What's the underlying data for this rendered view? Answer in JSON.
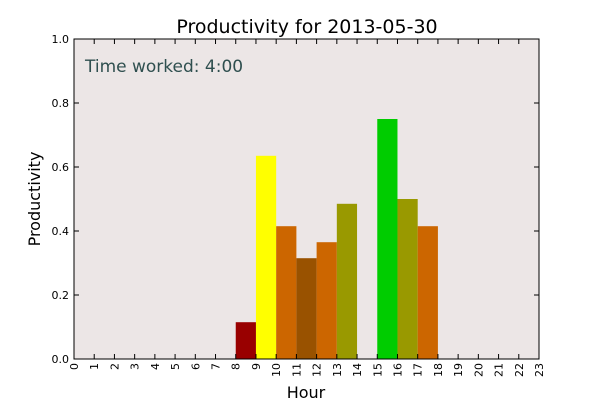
{
  "chart_data": {
    "type": "bar",
    "title": "Productivity for 2013-05-30",
    "xlabel": "Hour",
    "ylabel": "Productivity",
    "annotation": "Time worked: 4:00",
    "xlim": [
      0,
      23
    ],
    "ylim": [
      0,
      1
    ],
    "xticks": [
      "0",
      "1",
      "2",
      "3",
      "4",
      "5",
      "6",
      "7",
      "8",
      "9",
      "10",
      "11",
      "12",
      "13",
      "14",
      "15",
      "16",
      "17",
      "18",
      "19",
      "20",
      "21",
      "22",
      "23"
    ],
    "yticks": [
      "0.0",
      "0.2",
      "0.4",
      "0.6",
      "0.8",
      "1.0"
    ],
    "grid": false,
    "plot_background": "#ece6e6",
    "bars": [
      {
        "hour": 8,
        "value": 0.115,
        "color": "#990000"
      },
      {
        "hour": 9,
        "value": 0.635,
        "color": "#ffff00"
      },
      {
        "hour": 10,
        "value": 0.415,
        "color": "#cc6600"
      },
      {
        "hour": 11,
        "value": 0.315,
        "color": "#995200"
      },
      {
        "hour": 12,
        "value": 0.365,
        "color": "#cc6600"
      },
      {
        "hour": 13,
        "value": 0.485,
        "color": "#999900"
      },
      {
        "hour": 15,
        "value": 0.75,
        "color": "#00cc00"
      },
      {
        "hour": 16,
        "value": 0.5,
        "color": "#999900"
      },
      {
        "hour": 17,
        "value": 0.415,
        "color": "#cc6600"
      }
    ]
  }
}
